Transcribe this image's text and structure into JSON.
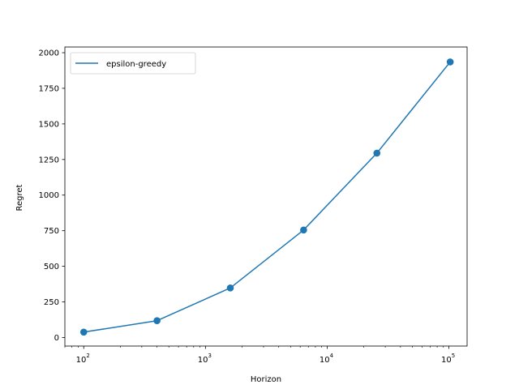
{
  "chart_data": {
    "type": "line",
    "title": "",
    "xlabel": "Horizon",
    "ylabel": "Regret",
    "xscale": "log",
    "xlim": [
      70,
      141000
    ],
    "ylim": [
      -60,
      2040
    ],
    "grid": false,
    "legend_position": "top-left",
    "series": [
      {
        "name": "epsilon-greedy",
        "color": "#1f77b4",
        "marker": "circle",
        "x": [
          100,
          400,
          1600,
          6400,
          25600,
          102400
        ],
        "y": [
          38,
          118,
          348,
          755,
          1295,
          1935
        ]
      }
    ],
    "y_ticks": [
      {
        "value": 0,
        "label": "0"
      },
      {
        "value": 250,
        "label": "250"
      },
      {
        "value": 500,
        "label": "500"
      },
      {
        "value": 750,
        "label": "750"
      },
      {
        "value": 1000,
        "label": "1000"
      },
      {
        "value": 1250,
        "label": "1250"
      },
      {
        "value": 1500,
        "label": "1500"
      },
      {
        "value": 1750,
        "label": "1750"
      },
      {
        "value": 2000,
        "label": "2000"
      }
    ],
    "x_major_ticks": [
      {
        "value": 100,
        "mantissa": "10",
        "exp": "2"
      },
      {
        "value": 1000,
        "mantissa": "10",
        "exp": "3"
      },
      {
        "value": 10000,
        "mantissa": "10",
        "exp": "4"
      },
      {
        "value": 100000,
        "mantissa": "10",
        "exp": "5"
      }
    ]
  }
}
